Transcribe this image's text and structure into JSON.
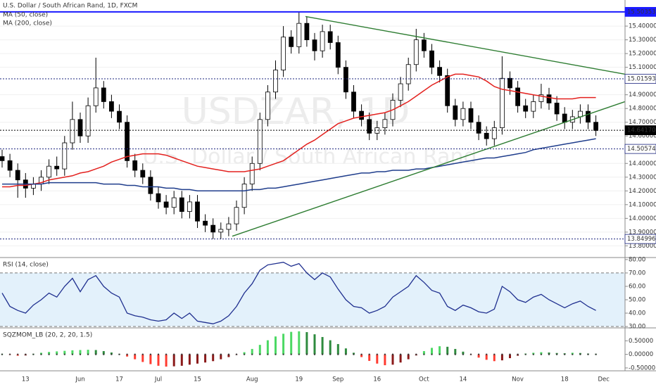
{
  "chart_data": [
    {
      "type": "candlestick",
      "title": "U.S. Dollar / South African Rand, 1D, FXCM",
      "watermark": "USDZAR, 1D",
      "watermark_subtitle": "U.S. Dollar / South African Rand",
      "categories": [
        null,
        null,
        null,
        "13",
        null,
        null,
        null,
        null,
        null,
        null,
        "Jun",
        null,
        null,
        null,
        null,
        "17",
        null,
        null,
        null,
        null,
        "Jul",
        null,
        null,
        null,
        null,
        "15",
        null,
        null,
        null,
        null,
        null,
        null,
        "Aug",
        null,
        null,
        null,
        null,
        null,
        "19",
        null,
        null,
        null,
        null,
        "Sep",
        null,
        null,
        null,
        null,
        "16",
        null,
        null,
        null,
        null,
        null,
        "Oct",
        null,
        null,
        null,
        null,
        "14",
        null,
        null,
        null,
        null,
        null,
        null,
        "Nov",
        null,
        null,
        null,
        null,
        null,
        "18",
        null,
        null,
        null,
        null,
        "Dec"
      ],
      "open": [
        14.45,
        14.42,
        14.35,
        14.28,
        14.22,
        14.25,
        14.3,
        14.38,
        14.36,
        14.55,
        14.72,
        14.6,
        14.82,
        14.95,
        14.85,
        14.78,
        14.7,
        14.42,
        14.35,
        14.3,
        14.18,
        14.12,
        14.08,
        14.15,
        14.05,
        14.12,
        13.98,
        13.95,
        13.9,
        13.92,
        13.96,
        14.08,
        14.25,
        14.4,
        14.72,
        14.92,
        15.08,
        15.32,
        15.25,
        15.42,
        15.3,
        15.22,
        15.36,
        15.28,
        15.1,
        14.92,
        14.78,
        14.72,
        14.62,
        14.66,
        14.72,
        14.86,
        14.98,
        15.12,
        15.3,
        15.22,
        15.1,
        15.04,
        14.82,
        14.72,
        14.8,
        14.7,
        14.62,
        14.58,
        14.66,
        15.02,
        14.95,
        14.82,
        14.78,
        14.85,
        14.9,
        14.84,
        14.76,
        14.7,
        14.74,
        14.78,
        14.7,
        null
      ],
      "high": [
        14.5,
        14.47,
        14.4,
        14.33,
        14.3,
        14.35,
        14.43,
        14.45,
        14.6,
        14.85,
        14.77,
        14.88,
        15.17,
        15.0,
        14.9,
        14.83,
        14.75,
        14.47,
        14.4,
        14.35,
        14.23,
        14.17,
        14.2,
        14.2,
        14.17,
        14.17,
        14.03,
        14.0,
        13.97,
        14.01,
        14.13,
        14.3,
        14.45,
        14.77,
        14.97,
        15.15,
        15.4,
        15.37,
        15.5,
        15.47,
        15.35,
        15.41,
        15.41,
        15.33,
        15.15,
        14.97,
        14.83,
        14.77,
        14.71,
        14.77,
        14.91,
        15.03,
        15.17,
        15.38,
        15.35,
        15.27,
        15.15,
        15.09,
        14.87,
        14.85,
        14.85,
        14.75,
        14.67,
        14.71,
        15.18,
        15.07,
        15.0,
        14.87,
        14.9,
        14.98,
        14.95,
        14.89,
        14.81,
        14.79,
        14.83,
        14.83,
        14.75,
        null
      ],
      "low": [
        14.37,
        14.3,
        14.15,
        14.15,
        14.17,
        14.2,
        14.25,
        14.31,
        14.31,
        14.5,
        14.55,
        14.55,
        14.77,
        14.8,
        14.73,
        14.65,
        14.37,
        14.3,
        14.25,
        14.13,
        14.07,
        14.03,
        14.03,
        14.0,
        14.0,
        13.93,
        13.9,
        13.85,
        13.85,
        13.87,
        13.91,
        14.03,
        14.2,
        14.35,
        14.67,
        14.87,
        15.03,
        15.2,
        15.2,
        15.25,
        15.15,
        15.17,
        15.23,
        15.05,
        14.87,
        14.73,
        14.67,
        14.57,
        14.57,
        14.61,
        14.67,
        14.81,
        14.93,
        15.07,
        15.17,
        15.05,
        14.99,
        14.77,
        14.67,
        14.67,
        14.65,
        14.57,
        14.53,
        14.53,
        14.61,
        14.9,
        14.77,
        14.73,
        14.73,
        14.8,
        14.79,
        14.71,
        14.65,
        14.65,
        14.69,
        14.65,
        14.6,
        null
      ],
      "close": [
        14.42,
        14.35,
        14.28,
        14.22,
        14.25,
        14.3,
        14.38,
        14.36,
        14.55,
        14.72,
        14.6,
        14.82,
        14.95,
        14.85,
        14.78,
        14.7,
        14.42,
        14.35,
        14.3,
        14.18,
        14.12,
        14.08,
        14.15,
        14.05,
        14.12,
        13.98,
        13.95,
        13.9,
        13.92,
        13.96,
        14.08,
        14.25,
        14.4,
        14.72,
        14.92,
        15.08,
        15.32,
        15.25,
        15.42,
        15.3,
        15.22,
        15.36,
        15.28,
        15.1,
        14.92,
        14.78,
        14.72,
        14.62,
        14.66,
        14.72,
        14.86,
        14.98,
        15.12,
        15.3,
        15.22,
        15.1,
        15.04,
        14.82,
        14.72,
        14.8,
        14.7,
        14.62,
        14.58,
        14.66,
        15.02,
        14.95,
        14.82,
        14.78,
        14.85,
        14.9,
        14.84,
        14.76,
        14.7,
        14.74,
        14.78,
        14.7,
        14.64,
        null
      ],
      "up_color": "#ffffff",
      "down_color": "#000000",
      "series": [
        {
          "name": "MA (50, close)",
          "color": "#e3211e",
          "values": [
            14.23,
            14.23,
            14.24,
            14.24,
            14.25,
            14.26,
            14.28,
            14.29,
            14.3,
            14.31,
            14.33,
            14.34,
            14.36,
            14.38,
            14.41,
            14.43,
            14.45,
            14.46,
            14.47,
            14.47,
            14.47,
            14.46,
            14.44,
            14.42,
            14.4,
            14.38,
            14.37,
            14.36,
            14.35,
            14.34,
            14.34,
            14.34,
            14.35,
            14.36,
            14.38,
            14.4,
            14.42,
            14.46,
            14.5,
            14.54,
            14.57,
            14.61,
            14.65,
            14.69,
            14.71,
            14.73,
            14.74,
            14.75,
            14.76,
            14.77,
            14.79,
            14.82,
            14.85,
            14.89,
            14.93,
            14.97,
            15.0,
            15.03,
            15.05,
            15.05,
            15.04,
            15.03,
            15.0,
            14.96,
            14.94,
            14.93,
            14.92,
            14.91,
            14.9,
            14.89,
            14.88,
            14.87,
            14.87,
            14.87,
            14.88,
            14.88,
            14.88,
            null
          ]
        },
        {
          "name": "MA (200, close)",
          "color": "#1f3d8c",
          "values": [
            14.25,
            14.25,
            14.25,
            14.25,
            14.25,
            14.25,
            14.26,
            14.26,
            14.26,
            14.26,
            14.26,
            14.26,
            14.26,
            14.25,
            14.25,
            14.25,
            14.24,
            14.24,
            14.23,
            14.23,
            14.23,
            14.22,
            14.22,
            14.21,
            14.21,
            14.2,
            14.2,
            14.2,
            14.2,
            14.2,
            14.2,
            14.2,
            14.21,
            14.21,
            14.22,
            14.22,
            14.23,
            14.24,
            14.25,
            14.26,
            14.27,
            14.28,
            14.29,
            14.3,
            14.31,
            14.32,
            14.33,
            14.33,
            14.34,
            14.34,
            14.35,
            14.35,
            14.35,
            14.36,
            14.36,
            14.37,
            14.38,
            14.39,
            14.4,
            14.41,
            14.42,
            14.43,
            14.44,
            14.44,
            14.45,
            14.46,
            14.47,
            14.48,
            14.5,
            14.51,
            14.52,
            14.53,
            14.54,
            14.55,
            14.56,
            14.57,
            14.58,
            null
          ]
        }
      ],
      "levels": [
        {
          "value": 15.50353,
          "color": "#1a1aff",
          "text_color": "#ffffff",
          "style": "solid"
        },
        {
          "value": 15.01593,
          "color": "#1a237e",
          "text_color": "#000000",
          "style": "dotted"
        },
        {
          "value": 14.6417,
          "label": "14.64170",
          "color": "#000000",
          "text_color": "#ffffff",
          "style": "dotted"
        },
        {
          "value": 14.50574,
          "color": "#1a237e",
          "text_color": "#000000",
          "style": "dotted"
        },
        {
          "value": 13.84996,
          "color": "#1a237e",
          "text_color": "#000000",
          "style": "dotted"
        }
      ],
      "trendlines": [
        {
          "color": "#2e7d32",
          "values": [
            15.47,
            15.05
          ]
        },
        {
          "color": "#2e7d32",
          "values": [
            13.87,
            14.85
          ]
        }
      ],
      "ylim": [
        13.72,
        15.59
      ],
      "yticks": [
        {
          "value": 15.4,
          "label": "15.40000"
        },
        {
          "value": 15.3,
          "label": "15.30000"
        },
        {
          "value": 15.2,
          "label": "15.20000"
        },
        {
          "value": 15.1,
          "label": "15.10000"
        },
        {
          "value": 14.9,
          "label": "14.90000"
        },
        {
          "value": 14.8,
          "label": "14.80000"
        },
        {
          "value": 14.7,
          "label": "14.70000"
        },
        {
          "value": 14.6,
          "label": "14.60000"
        },
        {
          "value": 14.4,
          "label": "14.40000"
        },
        {
          "value": 14.3,
          "label": "14.30000"
        },
        {
          "value": 14.2,
          "label": "14.20000"
        },
        {
          "value": 14.1,
          "label": "14.10000"
        },
        {
          "value": 14.0,
          "label": "14.00000"
        },
        {
          "value": 13.9,
          "label": "13.90000"
        },
        {
          "value": 13.8,
          "label": "13.80000"
        }
      ]
    },
    {
      "type": "line",
      "title": "RSI (14, close)",
      "color": "#1f2f8f",
      "band_color": "#e3f1fb",
      "band": [
        30,
        70
      ],
      "values": [
        55,
        45,
        42,
        40,
        46,
        50,
        55,
        52,
        60,
        66,
        56,
        65,
        68,
        60,
        55,
        52,
        40,
        38,
        37,
        35,
        34,
        35,
        40,
        36,
        40,
        34,
        33,
        32,
        34,
        38,
        45,
        55,
        62,
        72,
        76,
        77,
        78,
        75,
        77,
        70,
        65,
        70,
        67,
        58,
        50,
        45,
        44,
        40,
        42,
        45,
        52,
        56,
        60,
        68,
        63,
        57,
        55,
        45,
        42,
        46,
        44,
        41,
        40,
        43,
        60,
        56,
        50,
        48,
        52,
        54,
        50,
        47,
        44,
        47,
        49,
        45,
        42,
        null
      ],
      "ylim": [
        29.5,
        81
      ],
      "yticks": [
        {
          "value": 80,
          "label": "80.00"
        },
        {
          "value": 70,
          "label": "70.00"
        },
        {
          "value": 60,
          "label": "60.00"
        },
        {
          "value": 50,
          "label": "50.00"
        },
        {
          "value": 40,
          "label": "40.00"
        },
        {
          "value": 30,
          "label": "30.00"
        }
      ]
    },
    {
      "type": "histogram",
      "title": "SQZMOM_LB (20, 2, 20, 1.5)",
      "colors": {
        "pos_rising": "#4cd964",
        "pos_falling": "#2e8b3e",
        "neg_falling": "#ff3b30",
        "neg_rising": "#8b1a1a"
      },
      "values": [
        0.02,
        -0.02,
        -0.05,
        -0.04,
        0.02,
        0.06,
        0.09,
        0.11,
        0.13,
        0.15,
        0.16,
        0.17,
        0.16,
        0.12,
        0.07,
        0.01,
        -0.08,
        -0.18,
        -0.28,
        -0.36,
        -0.42,
        -0.45,
        -0.44,
        -0.42,
        -0.38,
        -0.34,
        -0.3,
        -0.25,
        -0.18,
        -0.1,
        -0.02,
        0.08,
        0.2,
        0.35,
        0.52,
        0.66,
        0.76,
        0.83,
        0.85,
        0.82,
        0.74,
        0.64,
        0.52,
        0.38,
        0.22,
        0.06,
        -0.1,
        -0.24,
        -0.34,
        -0.4,
        -0.38,
        -0.3,
        -0.18,
        -0.04,
        0.12,
        0.24,
        0.3,
        0.28,
        0.2,
        0.1,
        -0.02,
        -0.12,
        -0.2,
        -0.25,
        -0.22,
        -0.14,
        -0.05,
        0.03,
        0.06,
        0.08,
        0.07,
        0.05,
        0.04,
        0.06,
        0.05,
        0.03,
        0.02,
        null
      ],
      "ylim": [
        -0.58,
        0.95
      ],
      "yticks": [
        {
          "value": 0.5,
          "label": "0.50000"
        },
        {
          "value": 0,
          "label": "0.00000"
        },
        {
          "value": -0.5,
          "label": "-0.50000"
        }
      ]
    }
  ]
}
